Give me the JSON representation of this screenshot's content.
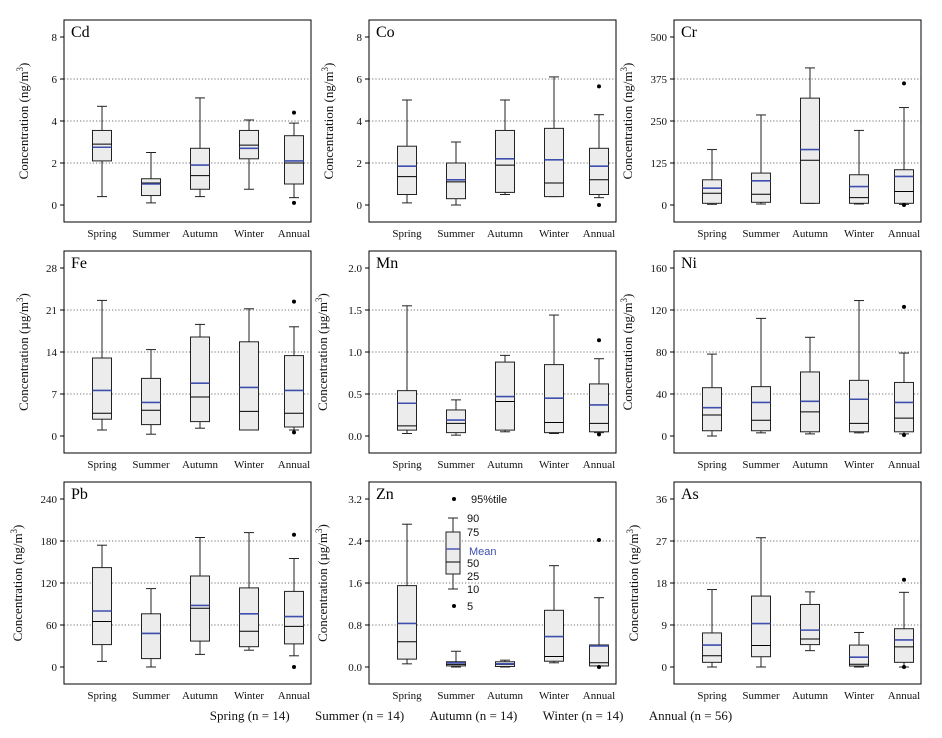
{
  "figure": {
    "categories": [
      "Spring",
      "Summer",
      "Autumn",
      "Winter",
      "Annual"
    ],
    "footer_groups": [
      "Spring (n = 14)",
      "Summer (n = 14)",
      "Autumn (n = 14)",
      "Winter (n = 14)",
      "Annual (n = 56)"
    ],
    "colors": {
      "mean": "#3f4fae",
      "box_fill": "#ececec",
      "box_edge": "#222222",
      "grid": "#444444"
    }
  },
  "legend": {
    "title_p95": "95%tile",
    "p90": "90",
    "p75": "75",
    "mean": "Mean",
    "p50": "50",
    "p25": "25",
    "p10": "10",
    "p5": "5"
  },
  "chart_data": [
    {
      "type": "box",
      "element": "Cd",
      "ylabel": "Concentration (ng/m3)",
      "unit_prefix": "Concentration (",
      "unit_mid": "ng/m",
      "unit_sup": "3",
      "ylim": [
        0,
        8
      ],
      "yticks": [
        0,
        2,
        4,
        6,
        8
      ],
      "tick_labels": [
        "0",
        "2",
        "4",
        "6",
        "8"
      ],
      "boxes": [
        {
          "category": "Spring",
          "p10": 0.4,
          "p25": 2.1,
          "median": 2.9,
          "p75": 3.55,
          "p90": 4.7,
          "mean": 2.75,
          "outliers": []
        },
        {
          "category": "Summer",
          "p10": 0.1,
          "p25": 0.45,
          "median": 1.05,
          "p75": 1.25,
          "p90": 2.5,
          "mean": 1.0,
          "outliers": []
        },
        {
          "category": "Autumn",
          "p10": 0.4,
          "p25": 0.75,
          "median": 1.4,
          "p75": 2.7,
          "p90": 5.1,
          "mean": 1.9,
          "outliers": []
        },
        {
          "category": "Winter",
          "p10": 0.75,
          "p25": 2.2,
          "median": 2.85,
          "p75": 3.55,
          "p90": 4.05,
          "mean": 2.7,
          "outliers": []
        },
        {
          "category": "Annual",
          "p10": 0.35,
          "p25": 1.0,
          "median": 2.0,
          "p75": 3.3,
          "p90": 3.9,
          "mean": 2.1,
          "outliers": [
            4.4,
            0.1
          ]
        }
      ]
    },
    {
      "type": "box",
      "element": "Co",
      "ylabel": "Concentration (ng/m3)",
      "unit_prefix": "Concentration (",
      "unit_mid": "ng/m",
      "unit_sup": "3",
      "ylim": [
        0,
        8
      ],
      "yticks": [
        0,
        2,
        4,
        6,
        8
      ],
      "tick_labels": [
        "0",
        "2",
        "4",
        "6",
        "8"
      ],
      "boxes": [
        {
          "category": "Spring",
          "p10": 0.1,
          "p25": 0.5,
          "median": 1.35,
          "p75": 2.8,
          "p90": 5.0,
          "mean": 1.85,
          "outliers": []
        },
        {
          "category": "Summer",
          "p10": 0.0,
          "p25": 0.3,
          "median": 1.1,
          "p75": 2.0,
          "p90": 3.0,
          "mean": 1.2,
          "outliers": []
        },
        {
          "category": "Autumn",
          "p10": 0.5,
          "p25": 0.6,
          "median": 1.9,
          "p75": 3.55,
          "p90": 5.0,
          "mean": 2.2,
          "outliers": []
        },
        {
          "category": "Winter",
          "p10": 0.4,
          "p25": 0.4,
          "median": 1.05,
          "p75": 3.65,
          "p90": 6.1,
          "mean": 2.15,
          "outliers": []
        },
        {
          "category": "Annual",
          "p10": 0.35,
          "p25": 0.5,
          "median": 1.2,
          "p75": 2.7,
          "p90": 4.3,
          "mean": 1.85,
          "outliers": [
            5.65,
            0.0
          ]
        }
      ]
    },
    {
      "type": "box",
      "element": "Cr",
      "ylabel": "Concentration (ng/m3)",
      "unit_prefix": "Concentration (",
      "unit_mid": "ng/m",
      "unit_sup": "3",
      "ylim": [
        0,
        500
      ],
      "yticks": [
        0,
        125,
        250,
        375,
        500
      ],
      "tick_labels": [
        "0",
        "125",
        "250",
        "375",
        "500"
      ],
      "boxes": [
        {
          "category": "Spring",
          "p10": 2,
          "p25": 5,
          "median": 35,
          "p75": 75,
          "p90": 165,
          "mean": 50,
          "outliers": []
        },
        {
          "category": "Summer",
          "p10": 3,
          "p25": 8,
          "median": 32,
          "p75": 95,
          "p90": 268,
          "mean": 72,
          "outliers": []
        },
        {
          "category": "Autumn",
          "p10": 5,
          "p25": 5,
          "median": 133,
          "p75": 318,
          "p90": 408,
          "mean": 165,
          "outliers": []
        },
        {
          "category": "Winter",
          "p10": 3,
          "p25": 5,
          "median": 22,
          "p75": 90,
          "p90": 222,
          "mean": 55,
          "outliers": []
        },
        {
          "category": "Annual",
          "p10": 2,
          "p25": 5,
          "median": 40,
          "p75": 105,
          "p90": 290,
          "mean": 85,
          "outliers": [
            362,
            0
          ]
        }
      ]
    },
    {
      "type": "box",
      "element": "Fe",
      "ylabel": "Concentration (µg/m3)",
      "unit_prefix": "Concentration (",
      "unit_mid": "µg/m",
      "unit_sup": "3",
      "ylim": [
        0,
        28
      ],
      "yticks": [
        0,
        7,
        14,
        21,
        28
      ],
      "tick_labels": [
        "0",
        "7",
        "14",
        "21",
        "28"
      ],
      "boxes": [
        {
          "category": "Spring",
          "p10": 1.0,
          "p25": 2.8,
          "median": 3.8,
          "p75": 13.0,
          "p90": 22.6,
          "mean": 7.6,
          "outliers": []
        },
        {
          "category": "Summer",
          "p10": 0.3,
          "p25": 1.9,
          "median": 4.3,
          "p75": 9.6,
          "p90": 14.4,
          "mean": 5.6,
          "outliers": []
        },
        {
          "category": "Autumn",
          "p10": 1.3,
          "p25": 2.4,
          "median": 6.5,
          "p75": 16.5,
          "p90": 18.6,
          "mean": 8.8,
          "outliers": []
        },
        {
          "category": "Winter",
          "p10": 1.0,
          "p25": 1.0,
          "median": 4.1,
          "p75": 15.7,
          "p90": 21.2,
          "mean": 8.1,
          "outliers": []
        },
        {
          "category": "Annual",
          "p10": 1.0,
          "p25": 1.5,
          "median": 3.8,
          "p75": 13.4,
          "p90": 18.2,
          "mean": 7.6,
          "outliers": [
            22.4,
            0.6
          ]
        }
      ]
    },
    {
      "type": "box",
      "element": "Mn",
      "ylabel": "Concentration (µg/m3)",
      "unit_prefix": "Concentration (",
      "unit_mid": "µg/m",
      "unit_sup": "3",
      "ylim": [
        0,
        2.0
      ],
      "yticks": [
        0,
        0.5,
        1.0,
        1.5,
        2.0
      ],
      "tick_labels": [
        "0.0",
        "0.5",
        "1.0",
        "1.5",
        "2.0"
      ],
      "boxes": [
        {
          "category": "Spring",
          "p10": 0.03,
          "p25": 0.07,
          "median": 0.12,
          "p75": 0.54,
          "p90": 1.55,
          "mean": 0.39,
          "outliers": []
        },
        {
          "category": "Summer",
          "p10": 0.01,
          "p25": 0.04,
          "median": 0.15,
          "p75": 0.31,
          "p90": 0.43,
          "mean": 0.19,
          "outliers": []
        },
        {
          "category": "Autumn",
          "p10": 0.05,
          "p25": 0.07,
          "median": 0.41,
          "p75": 0.88,
          "p90": 0.96,
          "mean": 0.47,
          "outliers": []
        },
        {
          "category": "Winter",
          "p10": 0.03,
          "p25": 0.04,
          "median": 0.16,
          "p75": 0.85,
          "p90": 1.44,
          "mean": 0.45,
          "outliers": []
        },
        {
          "category": "Annual",
          "p10": 0.04,
          "p25": 0.05,
          "median": 0.15,
          "p75": 0.62,
          "p90": 0.92,
          "mean": 0.37,
          "outliers": [
            1.14,
            0.02
          ]
        }
      ]
    },
    {
      "type": "box",
      "element": "Ni",
      "ylabel": "Concentration (ng/m3)",
      "unit_prefix": "Concentration (",
      "unit_mid": "ng/m",
      "unit_sup": "3",
      "ylim": [
        0,
        160
      ],
      "yticks": [
        0,
        40,
        80,
        120,
        160
      ],
      "tick_labels": [
        "0",
        "40",
        "80",
        "120",
        "160"
      ],
      "boxes": [
        {
          "category": "Spring",
          "p10": 0,
          "p25": 5,
          "median": 20,
          "p75": 46,
          "p90": 78,
          "mean": 27,
          "outliers": []
        },
        {
          "category": "Summer",
          "p10": 3,
          "p25": 5,
          "median": 15,
          "p75": 47,
          "p90": 112,
          "mean": 32,
          "outliers": []
        },
        {
          "category": "Autumn",
          "p10": 2,
          "p25": 4,
          "median": 23,
          "p75": 61,
          "p90": 94,
          "mean": 33,
          "outliers": []
        },
        {
          "category": "Winter",
          "p10": 3,
          "p25": 4,
          "median": 12,
          "p75": 53,
          "p90": 129,
          "mean": 35,
          "outliers": []
        },
        {
          "category": "Annual",
          "p10": 2,
          "p25": 4,
          "median": 17,
          "p75": 51,
          "p90": 79,
          "mean": 32,
          "outliers": [
            123,
            1
          ]
        }
      ]
    },
    {
      "type": "box",
      "element": "Pb",
      "ylabel": "Concentration (ng/m3)",
      "unit_prefix": "Concentration (",
      "unit_mid": "ng/m",
      "unit_sup": "3",
      "ylim": [
        0,
        240
      ],
      "yticks": [
        0,
        60,
        120,
        180,
        240
      ],
      "tick_labels": [
        "0",
        "60",
        "120",
        "180",
        "240"
      ],
      "boxes": [
        {
          "category": "Spring",
          "p10": 8,
          "p25": 32,
          "median": 65,
          "p75": 142,
          "p90": 174,
          "mean": 80,
          "outliers": []
        },
        {
          "category": "Summer",
          "p10": 0,
          "p25": 12,
          "median": 48,
          "p75": 76,
          "p90": 112,
          "mean": 48,
          "outliers": []
        },
        {
          "category": "Autumn",
          "p10": 18,
          "p25": 37,
          "median": 84,
          "p75": 130,
          "p90": 185,
          "mean": 88,
          "outliers": []
        },
        {
          "category": "Winter",
          "p10": 24,
          "p25": 29,
          "median": 51,
          "p75": 113,
          "p90": 192,
          "mean": 76,
          "outliers": []
        },
        {
          "category": "Annual",
          "p10": 16,
          "p25": 33,
          "median": 58,
          "p75": 108,
          "p90": 155,
          "mean": 72,
          "outliers": [
            189,
            0
          ]
        }
      ]
    },
    {
      "type": "box",
      "element": "Zn",
      "ylabel": "Concentration (µg/m3)",
      "unit_prefix": "Concentration (",
      "unit_mid": "µg/m",
      "unit_sup": "3",
      "ylim": [
        0,
        3.2
      ],
      "yticks": [
        0,
        0.8,
        1.6,
        2.4,
        3.2
      ],
      "tick_labels": [
        "0.0",
        "0.8",
        "1.6",
        "2.4",
        "3.2"
      ],
      "boxes": [
        {
          "category": "Spring",
          "p10": 0.06,
          "p25": 0.15,
          "median": 0.48,
          "p75": 1.55,
          "p90": 2.72,
          "mean": 0.83,
          "outliers": []
        },
        {
          "category": "Summer",
          "p10": 0.0,
          "p25": 0.02,
          "median": 0.05,
          "p75": 0.1,
          "p90": 0.3,
          "mean": 0.08,
          "outliers": []
        },
        {
          "category": "Autumn",
          "p10": 0.0,
          "p25": 0.01,
          "median": 0.05,
          "p75": 0.1,
          "p90": 0.13,
          "mean": 0.06,
          "outliers": []
        },
        {
          "category": "Winter",
          "p10": 0.08,
          "p25": 0.11,
          "median": 0.2,
          "p75": 1.08,
          "p90": 1.93,
          "mean": 0.58,
          "outliers": []
        },
        {
          "category": "Annual",
          "p10": 0.02,
          "p25": 0.02,
          "median": 0.08,
          "p75": 0.42,
          "p90": 1.32,
          "mean": 0.4,
          "outliers": [
            2.42,
            0.0
          ]
        }
      ]
    },
    {
      "type": "box",
      "element": "As",
      "ylabel": "Concentration (ng/m3)",
      "unit_prefix": "Concentration (",
      "unit_mid": "ng/m",
      "unit_sup": "3",
      "ylim": [
        0,
        36
      ],
      "yticks": [
        0,
        9,
        18,
        27,
        36
      ],
      "tick_labels": [
        "0",
        "9",
        "18",
        "27",
        "36"
      ],
      "boxes": [
        {
          "category": "Spring",
          "p10": 0,
          "p25": 1,
          "median": 2.4,
          "p75": 7.3,
          "p90": 16.6,
          "mean": 4.7,
          "outliers": []
        },
        {
          "category": "Summer",
          "p10": 0,
          "p25": 2.2,
          "median": 4.6,
          "p75": 15.2,
          "p90": 27.7,
          "mean": 9.3,
          "outliers": []
        },
        {
          "category": "Autumn",
          "p10": 3.5,
          "p25": 4.8,
          "median": 6.0,
          "p75": 13.4,
          "p90": 16.1,
          "mean": 7.9,
          "outliers": []
        },
        {
          "category": "Winter",
          "p10": 0,
          "p25": 0.2,
          "median": 0.6,
          "p75": 4.7,
          "p90": 7.4,
          "mean": 2.1,
          "outliers": []
        },
        {
          "category": "Annual",
          "p10": 0,
          "p25": 1,
          "median": 4.3,
          "p75": 8.2,
          "p90": 16.0,
          "mean": 5.8,
          "outliers": [
            18.7,
            0
          ]
        }
      ]
    }
  ]
}
